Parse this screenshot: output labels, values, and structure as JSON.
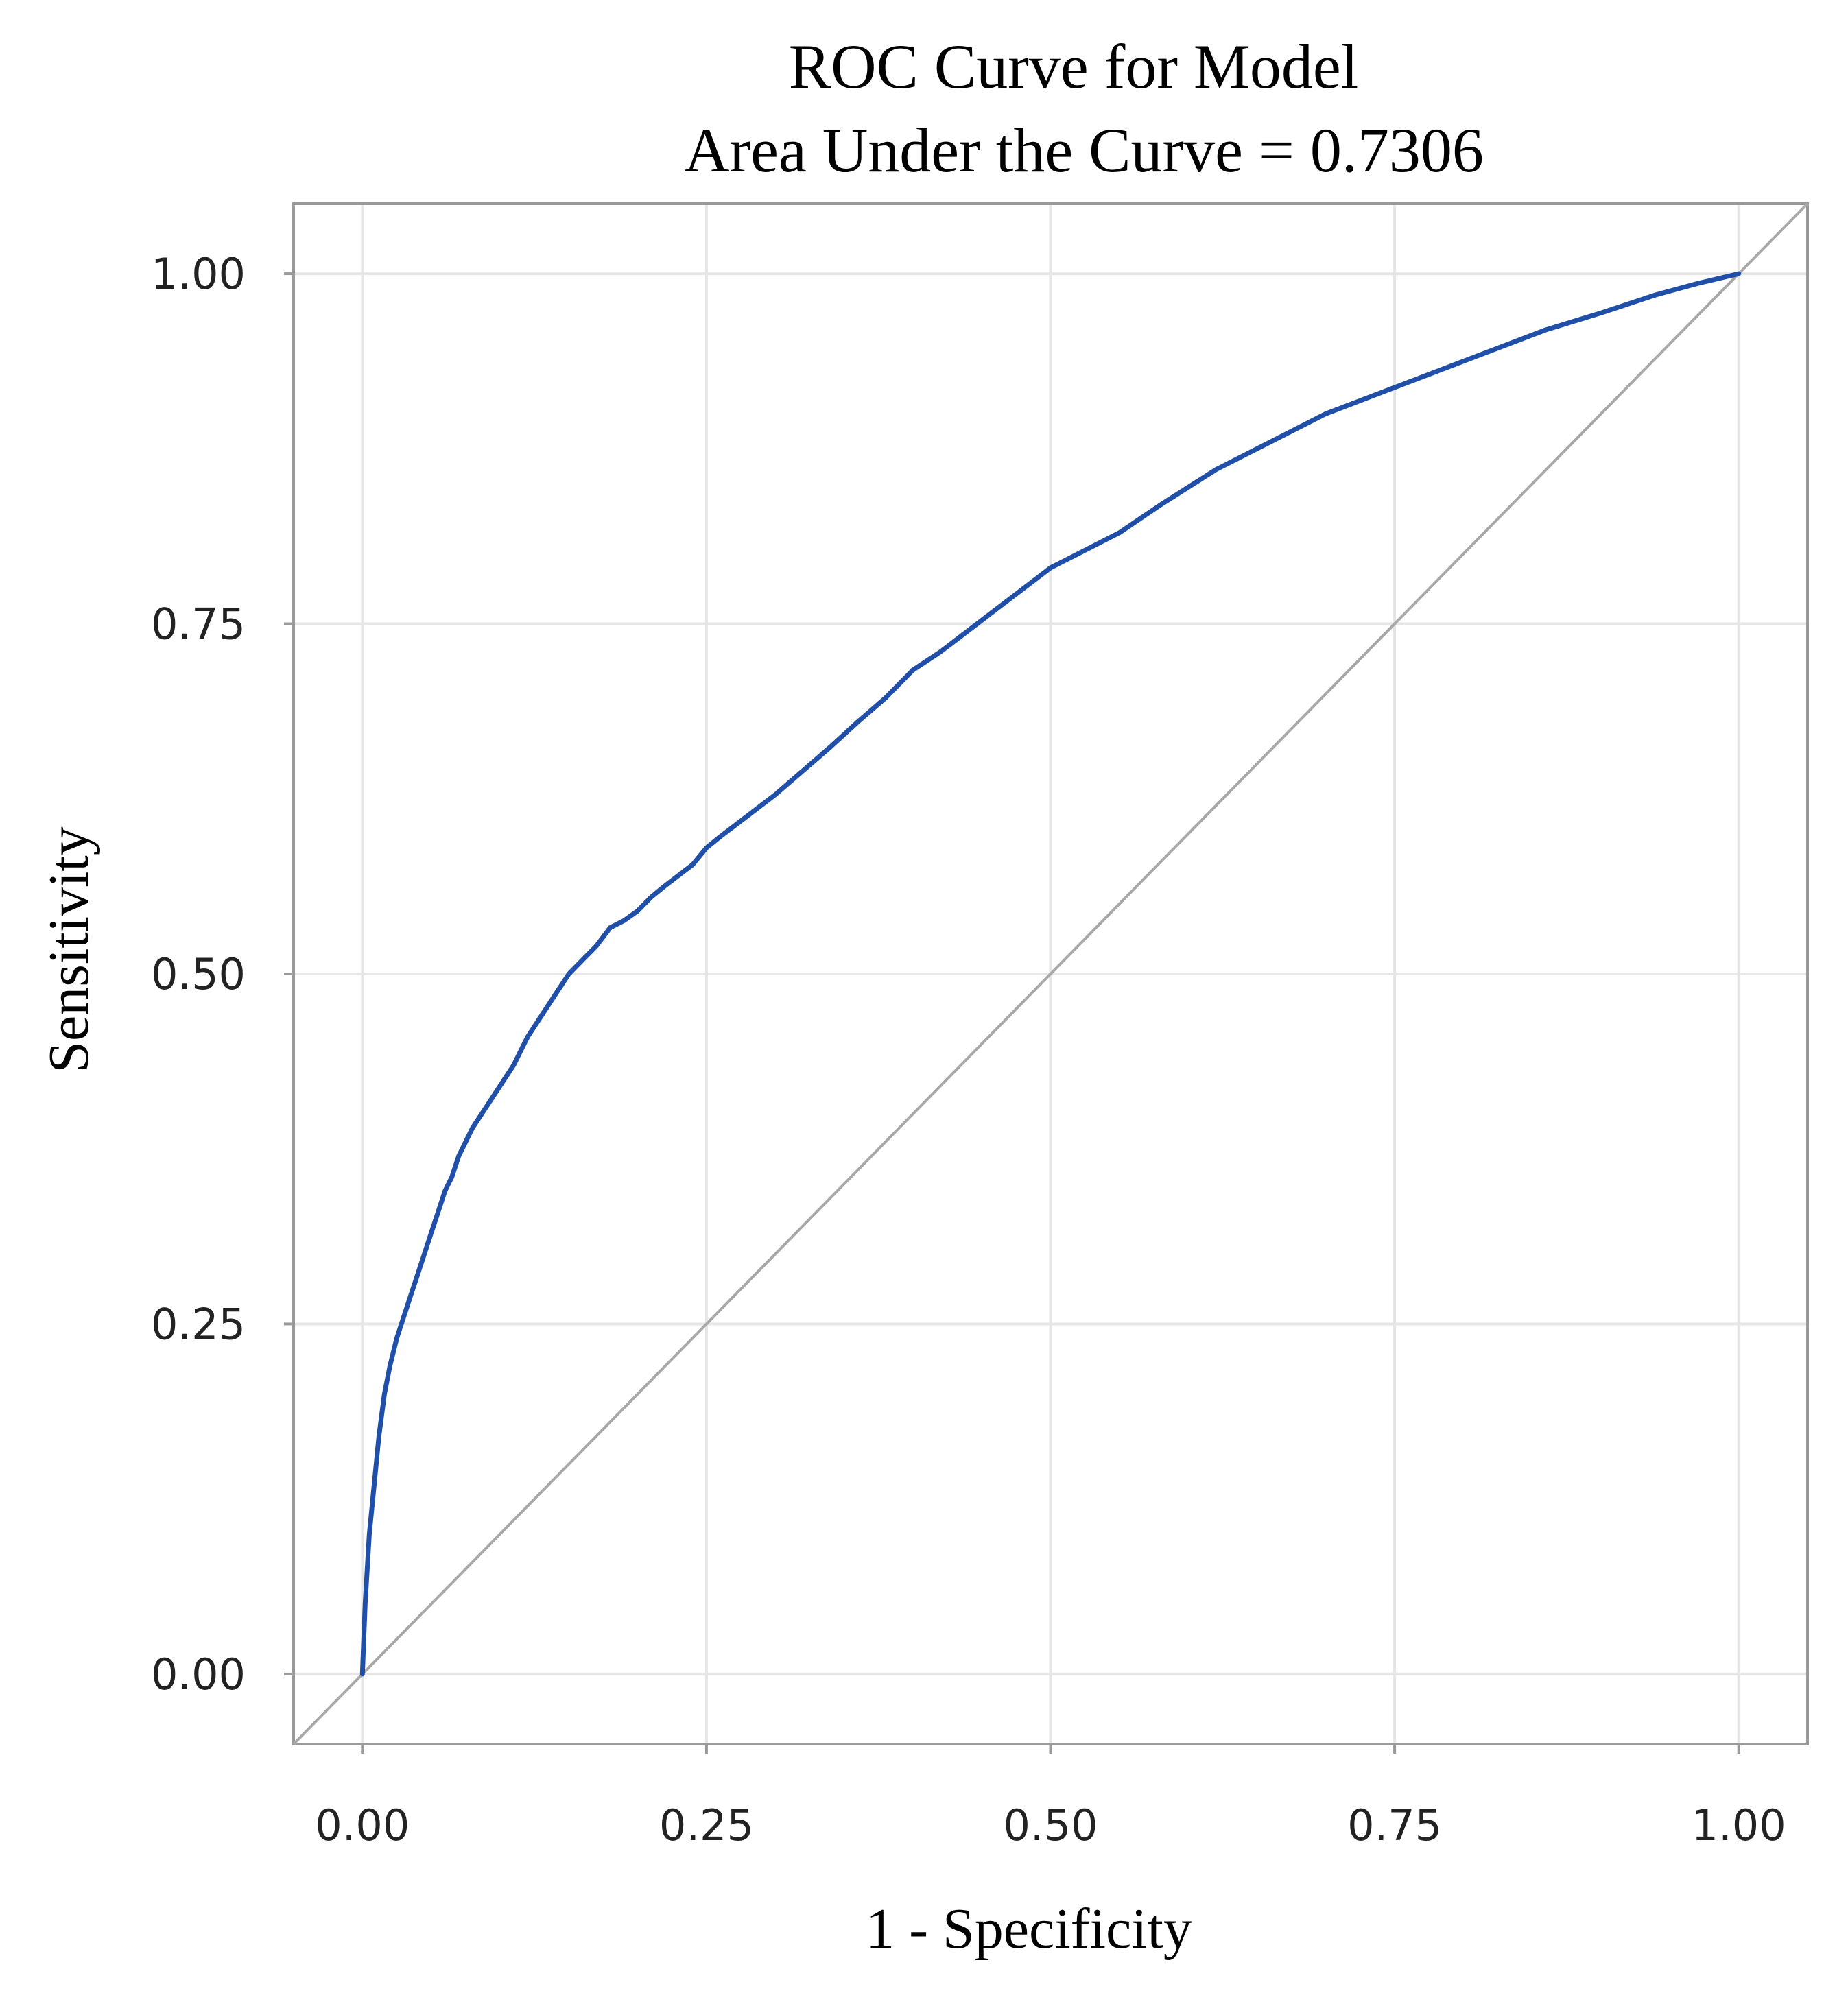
{
  "chart_data": {
    "type": "line",
    "title": "ROC Curve for Model",
    "subtitle": "Area Under the Curve = 0.7306",
    "xlabel": "1 - Specificity",
    "ylabel": "Sensitivity",
    "xlim": [
      -0.05,
      1.05
    ],
    "ylim": [
      -0.05,
      1.05
    ],
    "grid": true,
    "x_ticks": [
      0,
      0.25,
      0.5,
      0.75,
      1
    ],
    "x_tick_labels": [
      "0.00",
      "0.25",
      "0.50",
      "0.75",
      "1.00"
    ],
    "y_ticks": [
      0,
      0.25,
      0.5,
      0.75,
      1
    ],
    "y_tick_labels": [
      "0.00",
      "0.25",
      "0.50",
      "0.75",
      "1.00"
    ],
    "colors": {
      "curve": "#1f4fa8",
      "diagonal": "#a8a8a8"
    },
    "series": [
      {
        "x": [
          0,
          0.002,
          0.005,
          0.008,
          0.012,
          0.016,
          0.02,
          0.025,
          0.03,
          0.035,
          0.04,
          0.045,
          0.05,
          0.055,
          0.06,
          0.065,
          0.07,
          0.08,
          0.09,
          0.1,
          0.11,
          0.115,
          0.12,
          0.13,
          0.14,
          0.15,
          0.16,
          0.17,
          0.18,
          0.19,
          0.2,
          0.21,
          0.22,
          0.24,
          0.25,
          0.26,
          0.28,
          0.3,
          0.32,
          0.34,
          0.36,
          0.38,
          0.4,
          0.42,
          0.44,
          0.46,
          0.48,
          0.5,
          0.52,
          0.55,
          0.58,
          0.62,
          0.66,
          0.7,
          0.74,
          0.78,
          0.82,
          0.86,
          0.9,
          0.94,
          0.97,
          1.0
        ],
        "y": [
          0,
          0.05,
          0.1,
          0.13,
          0.17,
          0.2,
          0.22,
          0.24,
          0.255,
          0.27,
          0.285,
          0.3,
          0.315,
          0.33,
          0.345,
          0.355,
          0.37,
          0.39,
          0.405,
          0.42,
          0.435,
          0.445,
          0.455,
          0.47,
          0.485,
          0.5,
          0.51,
          0.52,
          0.533,
          0.538,
          0.545,
          0.555,
          0.563,
          0.578,
          0.59,
          0.598,
          0.613,
          0.628,
          0.645,
          0.662,
          0.68,
          0.697,
          0.717,
          0.73,
          0.745,
          0.76,
          0.775,
          0.79,
          0.8,
          0.815,
          0.835,
          0.86,
          0.88,
          0.9,
          0.915,
          0.93,
          0.945,
          0.96,
          0.972,
          0.985,
          0.993,
          1.0
        ]
      },
      {
        "x": [
          -0.05,
          1.05
        ],
        "y": [
          -0.05,
          1.05
        ]
      }
    ]
  }
}
